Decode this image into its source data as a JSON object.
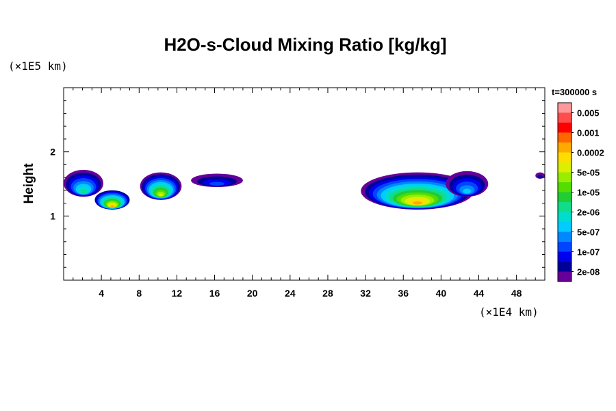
{
  "chart_data": {
    "type": "heatmap",
    "title": "H2O-s-Cloud Mixing Ratio [kg/kg]",
    "ylabel": "Height",
    "x_unit": "(×1E4 km)",
    "y_unit": "(×1E5 km)",
    "time_label": "t=300000 s",
    "xlim": [
      0,
      51
    ],
    "ylim": [
      0,
      3
    ],
    "x_ticks": [
      4,
      8,
      12,
      16,
      20,
      24,
      28,
      32,
      36,
      40,
      44,
      48
    ],
    "y_ticks": [
      1,
      2
    ],
    "x_minor_step": 1,
    "y_minor_step": 0.2,
    "colorbar": {
      "labels": [
        "0.005",
        "0.001",
        "0.0002",
        "5e-05",
        "1e-05",
        "2e-06",
        "5e-07",
        "1e-07",
        "2e-08"
      ],
      "colors": [
        "#ff9999",
        "#ff4d4d",
        "#ff0000",
        "#ff6600",
        "#ffaa00",
        "#ffdd00",
        "#ddee00",
        "#99ee00",
        "#55dd00",
        "#22cc33",
        "#11dd88",
        "#00ddcc",
        "#00ccff",
        "#0088ff",
        "#0044ff",
        "#0000ee",
        "#000099",
        "#660099"
      ]
    },
    "cloud_regions": [
      {
        "x_range": [
          0,
          4.2
        ],
        "y_range": [
          1.3,
          1.72
        ],
        "top_level": "2e-08",
        "core_level": "2e-06"
      },
      {
        "x_range": [
          3.3,
          7
        ],
        "y_range": [
          1.1,
          1.4
        ],
        "top_level": "1e-07",
        "core_level": "0.0002"
      },
      {
        "x_range": [
          8.1,
          12.5
        ],
        "y_range": [
          1.25,
          1.68
        ],
        "top_level": "2e-08",
        "core_level": "5e-05"
      },
      {
        "x_range": [
          13.5,
          19
        ],
        "y_range": [
          1.45,
          1.66
        ],
        "top_level": "2e-08",
        "core_level": "1e-07"
      },
      {
        "x_range": [
          31.5,
          43.5
        ],
        "y_range": [
          1.1,
          1.68
        ],
        "top_level": "2e-08",
        "core_level": "0.0002"
      },
      {
        "x_range": [
          40.5,
          45
        ],
        "y_range": [
          1.3,
          1.7
        ],
        "top_level": "2e-08",
        "core_level": "5e-07"
      },
      {
        "x_range": [
          50,
          51
        ],
        "y_range": [
          1.58,
          1.68
        ],
        "top_level": "2e-08",
        "core_level": "2e-08"
      }
    ]
  }
}
